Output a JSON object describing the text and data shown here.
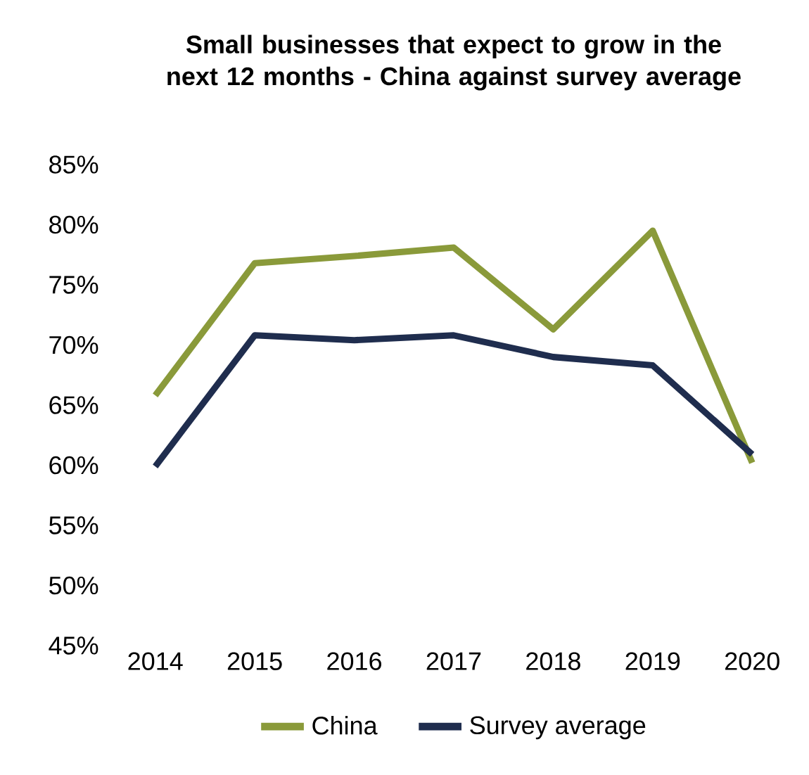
{
  "chart_data": {
    "type": "line",
    "title": "Small businesses that expect to grow in the next 12 months - China against survey average",
    "categories": [
      "2014",
      "2015",
      "2016",
      "2017",
      "2018",
      "2019",
      "2020"
    ],
    "series": [
      {
        "name": "China",
        "color": "#8a9a3a",
        "values": [
          65.8,
          76.8,
          77.4,
          78.1,
          71.3,
          79.5,
          60.2
        ]
      },
      {
        "name": "Survey average",
        "color": "#1f2d4e",
        "values": [
          59.9,
          70.8,
          70.4,
          70.8,
          69.0,
          68.3,
          60.9
        ]
      }
    ],
    "ylim": [
      45,
      85
    ],
    "yticks": [
      {
        "value": 45,
        "label": "45%"
      },
      {
        "value": 50,
        "label": "50%"
      },
      {
        "value": 55,
        "label": "55%"
      },
      {
        "value": 60,
        "label": "60%"
      },
      {
        "value": 65,
        "label": "65%"
      },
      {
        "value": 70,
        "label": "70%"
      },
      {
        "value": 75,
        "label": "75%"
      },
      {
        "value": 80,
        "label": "80%"
      },
      {
        "value": 85,
        "label": "85%"
      }
    ],
    "grid": false,
    "legend": "bottom",
    "marker": "none",
    "line_style": "solid"
  }
}
